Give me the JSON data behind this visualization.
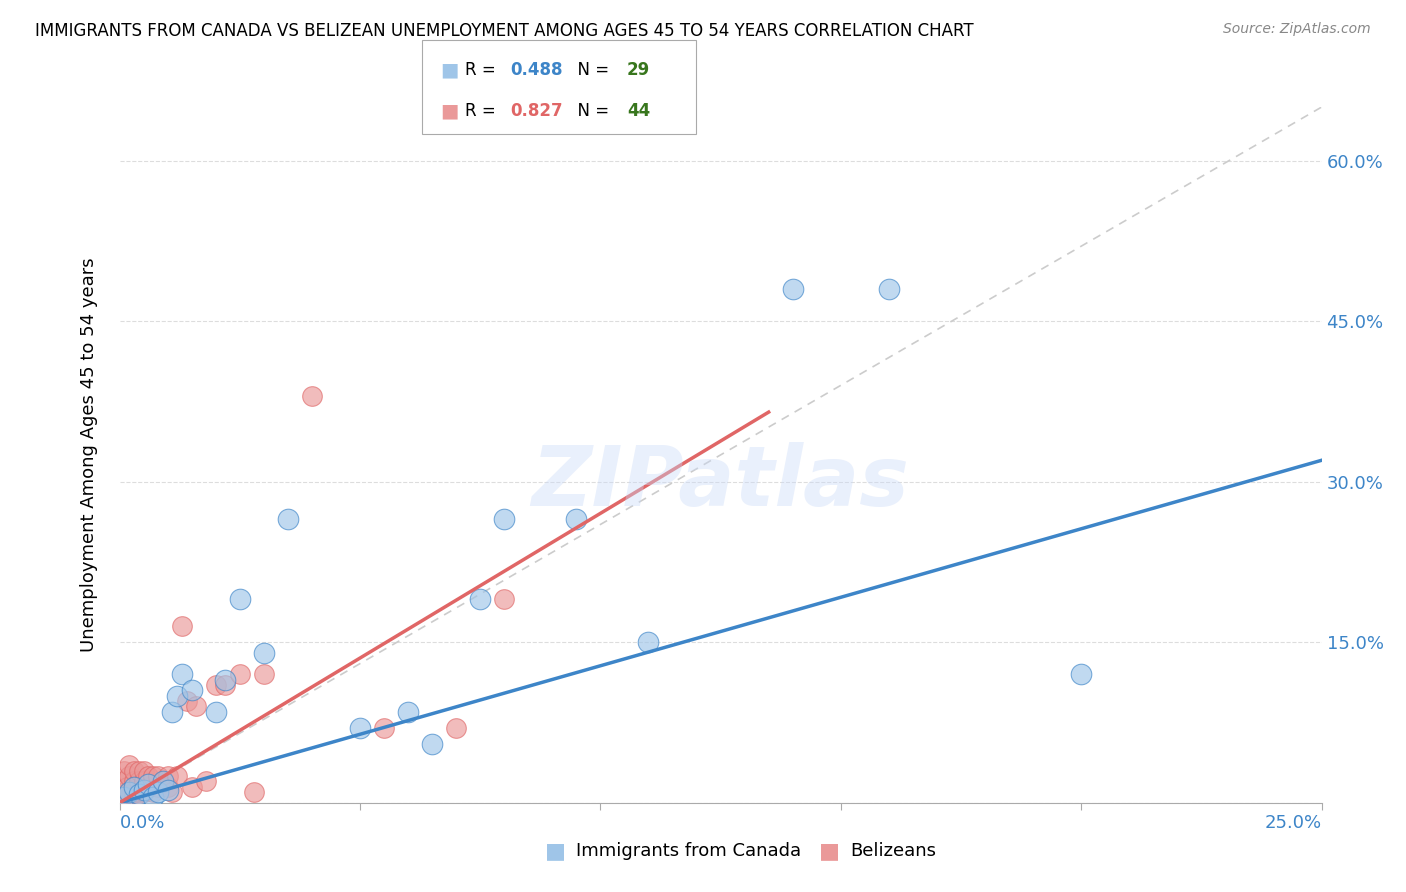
{
  "title": "IMMIGRANTS FROM CANADA VS BELIZEAN UNEMPLOYMENT AMONG AGES 45 TO 54 YEARS CORRELATION CHART",
  "source": "Source: ZipAtlas.com",
  "ylabel": "Unemployment Among Ages 45 to 54 years",
  "xmin": 0.0,
  "xmax": 0.25,
  "ymin": 0.0,
  "ymax": 0.65,
  "ytick_values": [
    0.0,
    0.15,
    0.3,
    0.45,
    0.6
  ],
  "ytick_labels": [
    "",
    "15.0%",
    "30.0%",
    "45.0%",
    "60.0%"
  ],
  "xtick_values": [
    0.0,
    0.05,
    0.1,
    0.15,
    0.2,
    0.25
  ],
  "color_blue": "#9fc5e8",
  "color_pink": "#ea9999",
  "color_blue_line": "#3d85c8",
  "color_pink_line": "#e06666",
  "color_dashed": "#cccccc",
  "color_axis_label": "#3d85c8",
  "r1": 0.488,
  "n1": 29,
  "r2": 0.827,
  "n2": 44,
  "legend_n_color": "#38761d",
  "watermark": "ZIPatlas",
  "blue_x": [
    0.001,
    0.002,
    0.003,
    0.004,
    0.005,
    0.006,
    0.007,
    0.008,
    0.009,
    0.01,
    0.011,
    0.012,
    0.013,
    0.015,
    0.02,
    0.022,
    0.025,
    0.03,
    0.035,
    0.05,
    0.06,
    0.065,
    0.075,
    0.08,
    0.095,
    0.11,
    0.14,
    0.16,
    0.2
  ],
  "blue_y": [
    0.005,
    0.01,
    0.015,
    0.008,
    0.012,
    0.018,
    0.005,
    0.01,
    0.02,
    0.012,
    0.085,
    0.1,
    0.12,
    0.105,
    0.085,
    0.115,
    0.19,
    0.14,
    0.265,
    0.07,
    0.085,
    0.055,
    0.19,
    0.265,
    0.265,
    0.15,
    0.48,
    0.48,
    0.12
  ],
  "pink_x": [
    0.0005,
    0.001,
    0.001,
    0.001,
    0.0015,
    0.002,
    0.002,
    0.002,
    0.002,
    0.003,
    0.003,
    0.003,
    0.003,
    0.004,
    0.004,
    0.004,
    0.005,
    0.005,
    0.005,
    0.006,
    0.006,
    0.007,
    0.007,
    0.008,
    0.008,
    0.009,
    0.01,
    0.01,
    0.011,
    0.012,
    0.013,
    0.014,
    0.015,
    0.016,
    0.018,
    0.02,
    0.022,
    0.025,
    0.028,
    0.03,
    0.04,
    0.055,
    0.07,
    0.08
  ],
  "pink_y": [
    0.005,
    0.01,
    0.02,
    0.03,
    0.015,
    0.005,
    0.01,
    0.025,
    0.035,
    0.005,
    0.01,
    0.02,
    0.03,
    0.01,
    0.02,
    0.03,
    0.01,
    0.02,
    0.03,
    0.015,
    0.025,
    0.01,
    0.025,
    0.015,
    0.025,
    0.02,
    0.015,
    0.025,
    0.01,
    0.025,
    0.165,
    0.095,
    0.015,
    0.09,
    0.02,
    0.11,
    0.11,
    0.12,
    0.01,
    0.12,
    0.38,
    0.07,
    0.07,
    0.19
  ]
}
